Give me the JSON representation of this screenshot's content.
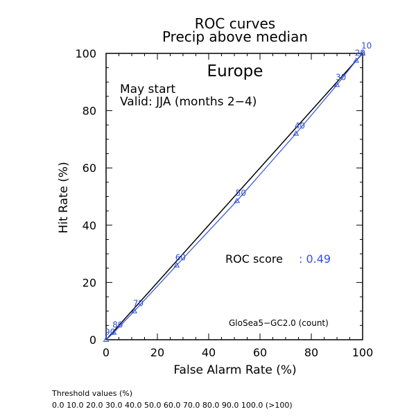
{
  "chart_data": {
    "type": "line",
    "title_line1": "ROC curves",
    "title_line2": "Precip above median",
    "region": "Europe",
    "start_label": "May start",
    "valid_label": "Valid: JJA (months 2−4)",
    "xlabel": "False Alarm Rate (%)",
    "ylabel": "Hit Rate (%)",
    "xlim": [
      0,
      100
    ],
    "ylim": [
      0,
      100
    ],
    "xticks": [
      0,
      20,
      40,
      60,
      80,
      100
    ],
    "yticks": [
      0,
      20,
      40,
      60,
      80,
      100
    ],
    "roc_score_label": "ROC score",
    "roc_score_value": ": 0.49",
    "model_label": "GloSea5−GC2.0 (count)",
    "series": [
      {
        "name": "GloSea5−GC2.0 (count)",
        "color": "#3050e0",
        "x": [
          0.0,
          3.0,
          11.0,
          27.5,
          51.0,
          74.0,
          90.0,
          97.5,
          100.0
        ],
        "y": [
          0.0,
          2.5,
          10.0,
          26.0,
          48.5,
          72.0,
          89.0,
          97.5,
          100.0
        ],
        "labels": [
          "90",
          "80",
          "70",
          "60",
          "50",
          "40",
          "30",
          "20",
          "10"
        ]
      }
    ],
    "reference_line": {
      "x": [
        0,
        100
      ],
      "y": [
        0,
        100
      ],
      "color": "#000000"
    }
  },
  "footer": {
    "threshold_title": "Threshold values (%)",
    "threshold_values": "0.0 10.0 20.0 30.0 40.0 50.0 60.0 70.0 80.0 90.0 100.0 (>100)"
  },
  "colors": {
    "series": "#3050e0",
    "axis": "#000000"
  }
}
